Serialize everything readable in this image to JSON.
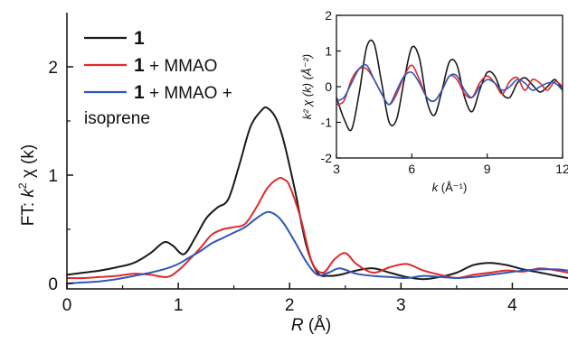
{
  "chart_data": [
    {
      "type": "line",
      "title": "",
      "xlabel": "R (Å)",
      "xlabel_italic_part": "R",
      "xlabel_rest": " (Å)",
      "ylabel": "FT: k² χ (k)",
      "ylabel_parts": [
        "FT: ",
        "k",
        "2",
        " χ (k)"
      ],
      "xlim": [
        0,
        4.5
      ],
      "ylim": [
        -0.05,
        2.5
      ],
      "xticks": [
        0,
        1,
        2,
        3,
        4
      ],
      "yticks": [
        0,
        1,
        2
      ],
      "xtick_labels": [
        "0",
        "1",
        "2",
        "3",
        "4"
      ],
      "ytick_labels": [
        "0",
        "1",
        "2"
      ],
      "grid": false,
      "legend_position": "top-left",
      "series": [
        {
          "legend_bold": "1",
          "legend_rest": "",
          "color": "#1a1a1a",
          "x": [
            0,
            0.15,
            0.3,
            0.45,
            0.6,
            0.75,
            0.87,
            0.95,
            1.05,
            1.15,
            1.25,
            1.35,
            1.45,
            1.55,
            1.65,
            1.75,
            1.8,
            1.88,
            1.95,
            2.05,
            2.15,
            2.25,
            2.35,
            2.45,
            2.6,
            2.75,
            2.9,
            3.05,
            3.2,
            3.35,
            3.5,
            3.65,
            3.8,
            3.95,
            4.1,
            4.25,
            4.4,
            4.5
          ],
          "y": [
            0.08,
            0.1,
            0.12,
            0.15,
            0.19,
            0.28,
            0.38,
            0.35,
            0.27,
            0.42,
            0.6,
            0.7,
            0.78,
            1.1,
            1.45,
            1.6,
            1.62,
            1.52,
            1.3,
            0.85,
            0.35,
            0.1,
            0.07,
            0.08,
            0.12,
            0.14,
            0.1,
            0.06,
            0.04,
            0.06,
            0.1,
            0.17,
            0.19,
            0.17,
            0.13,
            0.1,
            0.07,
            0.05
          ]
        },
        {
          "legend_bold": "1",
          "legend_rest": " + MMAO",
          "color": "#e02a2a",
          "x": [
            0,
            0.15,
            0.3,
            0.45,
            0.6,
            0.75,
            0.9,
            1.0,
            1.1,
            1.2,
            1.3,
            1.4,
            1.5,
            1.6,
            1.7,
            1.8,
            1.9,
            1.95,
            2.0,
            2.1,
            2.2,
            2.3,
            2.4,
            2.5,
            2.6,
            2.75,
            2.9,
            3.05,
            3.2,
            3.35,
            3.5,
            3.65,
            3.8,
            3.95,
            4.1,
            4.25,
            4.4,
            4.5
          ],
          "y": [
            0.05,
            0.05,
            0.06,
            0.07,
            0.09,
            0.08,
            0.06,
            0.12,
            0.22,
            0.33,
            0.45,
            0.5,
            0.52,
            0.55,
            0.7,
            0.88,
            0.97,
            0.96,
            0.9,
            0.6,
            0.2,
            0.1,
            0.22,
            0.28,
            0.18,
            0.1,
            0.15,
            0.18,
            0.12,
            0.08,
            0.05,
            0.08,
            0.1,
            0.12,
            0.11,
            0.14,
            0.12,
            0.1
          ]
        },
        {
          "legend_bold": "1",
          "legend_rest": " + MMAO +",
          "legend_line2": "isoprene",
          "color": "#2f56b8",
          "x": [
            0,
            0.15,
            0.3,
            0.45,
            0.6,
            0.75,
            0.9,
            1.0,
            1.1,
            1.2,
            1.3,
            1.4,
            1.5,
            1.6,
            1.7,
            1.8,
            1.88,
            1.95,
            2.05,
            2.15,
            2.25,
            2.35,
            2.45,
            2.6,
            2.75,
            2.9,
            3.05,
            3.2,
            3.35,
            3.5,
            3.65,
            3.8,
            3.95,
            4.1,
            4.25,
            4.4,
            4.5
          ],
          "y": [
            0.0,
            0.01,
            0.02,
            0.04,
            0.07,
            0.1,
            0.14,
            0.18,
            0.24,
            0.3,
            0.37,
            0.42,
            0.47,
            0.52,
            0.6,
            0.66,
            0.63,
            0.55,
            0.38,
            0.2,
            0.08,
            0.1,
            0.14,
            0.09,
            0.07,
            0.06,
            0.05,
            0.07,
            0.06,
            0.05,
            0.06,
            0.08,
            0.1,
            0.12,
            0.13,
            0.13,
            0.12
          ]
        }
      ]
    },
    {
      "type": "line",
      "title": "",
      "xlabel": "k (Å⁻¹)",
      "xlabel_italic_part": "k",
      "xlabel_rest": " (Å⁻¹)",
      "ylabel": "k² χ (k) (Å⁻²)",
      "xlim": [
        3,
        12
      ],
      "ylim": [
        -2,
        2
      ],
      "xticks": [
        3,
        6,
        9,
        12
      ],
      "yticks": [
        -2,
        -1,
        0,
        1,
        2
      ],
      "xtick_labels": [
        "3",
        "6",
        "9",
        "12"
      ],
      "ytick_labels": [
        "-2",
        "-1",
        "0",
        "1",
        "2"
      ],
      "grid": false,
      "legend_position": "none",
      "series": [
        {
          "color": "#1a1a1a",
          "x": [
            3.0,
            3.3,
            3.6,
            3.9,
            4.2,
            4.5,
            4.8,
            5.1,
            5.4,
            5.7,
            6.0,
            6.3,
            6.6,
            6.9,
            7.2,
            7.5,
            7.8,
            8.1,
            8.4,
            8.7,
            9.0,
            9.3,
            9.6,
            9.9,
            10.2,
            10.5,
            10.8,
            11.1,
            11.4,
            11.7,
            12.0
          ],
          "y": [
            -0.3,
            -0.9,
            -1.2,
            -0.2,
            1.1,
            1.2,
            0.1,
            -1.0,
            -0.9,
            0.2,
            1.1,
            0.8,
            -0.4,
            -0.8,
            -0.1,
            0.7,
            0.6,
            -0.3,
            -0.7,
            -0.1,
            0.4,
            0.3,
            -0.2,
            -0.3,
            0.1,
            0.25,
            0.05,
            -0.15,
            0.0,
            0.2,
            -0.1
          ]
        },
        {
          "color": "#e02a2a",
          "x": [
            3.0,
            3.3,
            3.6,
            3.9,
            4.2,
            4.5,
            4.8,
            5.1,
            5.4,
            5.7,
            6.0,
            6.3,
            6.6,
            6.9,
            7.2,
            7.5,
            7.8,
            8.1,
            8.4,
            8.7,
            9.0,
            9.3,
            9.6,
            9.9,
            10.2,
            10.5,
            10.8,
            11.1,
            11.4,
            11.7,
            12.0
          ],
          "y": [
            -0.5,
            -0.4,
            0.2,
            0.5,
            0.5,
            0.2,
            -0.2,
            -0.5,
            -0.2,
            0.3,
            0.6,
            0.2,
            -0.3,
            -0.4,
            -0.1,
            0.3,
            0.2,
            -0.2,
            -0.3,
            0.1,
            0.3,
            0.1,
            -0.2,
            0.15,
            0.25,
            -0.1,
            0.2,
            0.1,
            -0.1,
            0.15,
            0.0
          ]
        },
        {
          "color": "#2f56b8",
          "x": [
            3.0,
            3.3,
            3.6,
            3.9,
            4.2,
            4.5,
            4.8,
            5.1,
            5.4,
            5.7,
            6.0,
            6.3,
            6.6,
            6.9,
            7.2,
            7.5,
            7.8,
            8.1,
            8.4,
            8.7,
            9.0,
            9.3,
            9.6,
            9.9,
            10.2,
            10.5,
            10.8,
            11.1,
            11.4,
            11.7,
            12.0
          ],
          "y": [
            -0.4,
            -0.3,
            0.1,
            0.5,
            0.6,
            0.2,
            -0.2,
            -0.5,
            -0.1,
            0.3,
            0.4,
            0.1,
            -0.3,
            -0.4,
            -0.1,
            0.3,
            0.3,
            -0.1,
            -0.3,
            0.0,
            0.2,
            0.1,
            -0.1,
            0.0,
            0.2,
            0.1,
            -0.1,
            0.0,
            0.1,
            0.1,
            -0.1
          ]
        }
      ]
    }
  ]
}
